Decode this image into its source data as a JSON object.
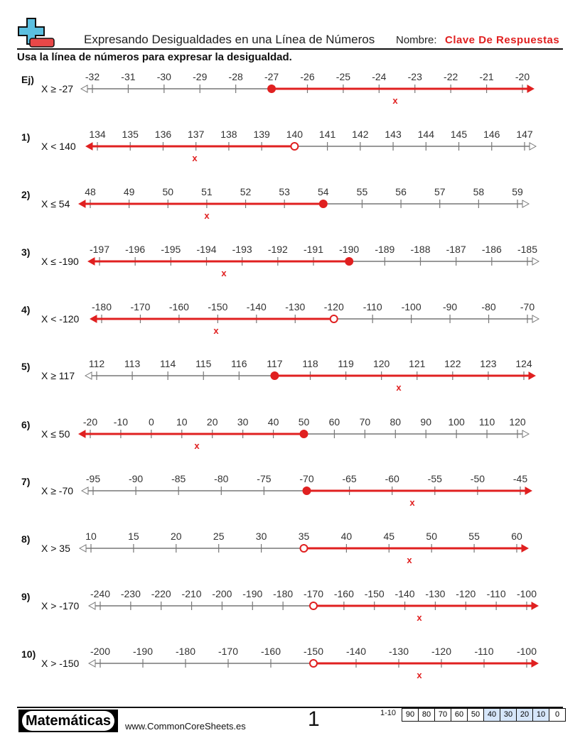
{
  "header": {
    "title": "Expresando Desigualdades en una Línea de Números",
    "name_label": "Nombre:",
    "name_value": "Clave De Respuestas"
  },
  "instructions": "Usa la línea de números para expresar la desigualdad.",
  "colors": {
    "answer": "#e02020",
    "line": "#777777",
    "logo_blue": "#5bbfe0",
    "logo_red": "#e84848",
    "score_highlight": "#d6e6fa"
  },
  "answer_mark": "x",
  "problems": [
    {
      "number": "Ej)",
      "inequality": "X ≥ -27",
      "ticks": [
        -32,
        -31,
        -30,
        -29,
        -28,
        -27,
        -26,
        -25,
        -24,
        -23,
        -22,
        -21,
        -20
      ],
      "value": -27,
      "direction": "right",
      "closed": true
    },
    {
      "number": "1)",
      "inequality": "X < 140",
      "ticks": [
        134,
        135,
        136,
        137,
        138,
        139,
        140,
        141,
        142,
        143,
        144,
        145,
        146,
        147
      ],
      "value": 140,
      "direction": "left",
      "closed": false
    },
    {
      "number": "2)",
      "inequality": "X ≤ 54",
      "ticks": [
        48,
        49,
        50,
        51,
        52,
        53,
        54,
        55,
        56,
        57,
        58,
        59
      ],
      "value": 54,
      "direction": "left",
      "closed": true
    },
    {
      "number": "3)",
      "inequality": "X ≤ -190",
      "ticks": [
        -197,
        -196,
        -195,
        -194,
        -193,
        -192,
        -191,
        -190,
        -189,
        -188,
        -187,
        -186,
        -185
      ],
      "value": -190,
      "direction": "left",
      "closed": true
    },
    {
      "number": "4)",
      "inequality": "X < -120",
      "ticks": [
        -180,
        -170,
        -160,
        -150,
        -140,
        -130,
        -120,
        -110,
        -100,
        -90,
        -80,
        -70
      ],
      "value": -120,
      "direction": "left",
      "closed": false
    },
    {
      "number": "5)",
      "inequality": "X ≥ 117",
      "ticks": [
        112,
        113,
        114,
        115,
        116,
        117,
        118,
        119,
        120,
        121,
        122,
        123,
        124
      ],
      "value": 117,
      "direction": "right",
      "closed": true
    },
    {
      "number": "6)",
      "inequality": "X ≤ 50",
      "ticks": [
        -20,
        -10,
        0,
        10,
        20,
        30,
        40,
        50,
        60,
        70,
        80,
        90,
        100,
        110,
        120
      ],
      "value": 50,
      "direction": "left",
      "closed": true
    },
    {
      "number": "7)",
      "inequality": "X ≥ -70",
      "ticks": [
        -95,
        -90,
        -85,
        -80,
        -75,
        -70,
        -65,
        -60,
        -55,
        -50,
        -45
      ],
      "value": -70,
      "direction": "right",
      "closed": true
    },
    {
      "number": "8)",
      "inequality": "X > 35",
      "ticks": [
        10,
        15,
        20,
        25,
        30,
        35,
        40,
        45,
        50,
        55,
        60
      ],
      "value": 35,
      "direction": "right",
      "closed": false
    },
    {
      "number": "9)",
      "inequality": "X > -170",
      "ticks": [
        -240,
        -230,
        -220,
        -210,
        -200,
        -190,
        -180,
        -170,
        -160,
        -150,
        -140,
        -130,
        -120,
        -110,
        -100
      ],
      "value": -170,
      "direction": "right",
      "closed": false
    },
    {
      "number": "10)",
      "inequality": "X > -150",
      "ticks": [
        -200,
        -190,
        -180,
        -170,
        -160,
        -150,
        -140,
        -130,
        -120,
        -110,
        -100
      ],
      "value": -150,
      "direction": "right",
      "closed": false
    }
  ],
  "footer": {
    "subject": "Matemáticas",
    "site": "www.CommonCoreSheets.es",
    "page": "1",
    "score_label": "1-10",
    "scores": [
      "90",
      "80",
      "70",
      "60",
      "50",
      "40",
      "30",
      "20",
      "10",
      "0"
    ]
  }
}
